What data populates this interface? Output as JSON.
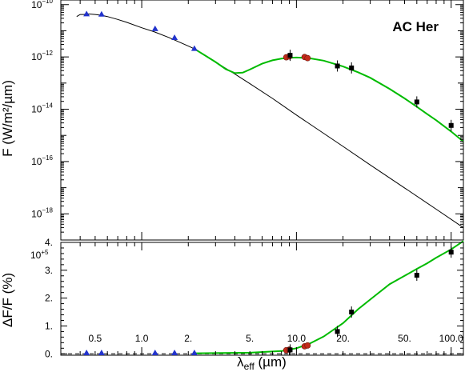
{
  "chart_data": [
    {
      "type": "scatter",
      "panel": "sed",
      "annotation": "AC Her",
      "xlabel_parts": [
        "λ",
        "eff",
        " (µm)"
      ],
      "ylabel": "F (W/m²/µm)",
      "x_scale": "log",
      "y_scale": "log",
      "xlim": [
        0.3,
        120
      ],
      "ylim": [
        1e-19,
        1.5e-10
      ],
      "x_ticks": [
        {
          "value": 0.5,
          "label": "0.5"
        },
        {
          "value": 1,
          "label": "1.0"
        },
        {
          "value": 2,
          "label": "2."
        },
        {
          "value": 5,
          "label": "5."
        },
        {
          "value": 10,
          "label": "10.0"
        },
        {
          "value": 20,
          "label": "20."
        },
        {
          "value": 50,
          "label": "50."
        },
        {
          "value": 100,
          "label": "100.0"
        }
      ],
      "y_ticks": [
        {
          "value": 1e-10,
          "mant": "10",
          "exp": "−10"
        },
        {
          "value": 1e-12,
          "mant": "10",
          "exp": "−12"
        },
        {
          "value": 1e-14,
          "mant": "10",
          "exp": "−14"
        },
        {
          "value": 1e-16,
          "mant": "10",
          "exp": "−16"
        },
        {
          "value": 1e-18,
          "mant": "10",
          "exp": "−18"
        }
      ],
      "colors": {
        "photosphere": "#000000",
        "model": "#00bb00",
        "blue_points": "#2233cc",
        "red_points": "#c42a1a",
        "black_points": "#000000"
      },
      "series": [
        {
          "kind": "photosphere_line",
          "x": [
            0.38,
            0.4,
            0.42,
            0.45,
            0.5,
            0.55,
            0.6,
            0.7,
            0.8,
            1.0,
            1.2,
            1.5,
            1.65,
            2.0,
            2.2,
            3.0,
            4.0,
            5.0,
            7.0,
            10.0,
            20.0,
            30.0,
            50.0,
            80.0,
            120.0
          ],
          "y": [
            3.5e-11,
            4.2e-11,
            4.2e-11,
            4.4e-11,
            4.2e-11,
            3.9e-11,
            3.5e-11,
            2.7e-11,
            2.1e-11,
            1.3e-11,
            9.2e-12,
            5.5e-12,
            4.3e-12,
            2.6e-12,
            2e-12,
            6.4e-13,
            2.2e-13,
            9.5e-14,
            2.6e-14,
            6e-15,
            3.8e-16,
            7.4e-17,
            9.8e-18,
            1.5e-18,
            2.95e-19
          ]
        },
        {
          "kind": "model_line",
          "x": [
            2.2,
            3.0,
            3.5,
            4.0,
            4.5,
            5.0,
            6.0,
            7.0,
            8.0,
            9.0,
            10.0,
            12.0,
            15.0,
            20.0,
            25.0,
            30.0,
            40.0,
            50.0,
            60.0,
            70.0,
            80.0,
            100.0,
            120.0
          ],
          "y": [
            2e-12,
            6.4e-13,
            3.4e-13,
            2.4e-13,
            2.5e-13,
            3.3e-13,
            5.5e-13,
            7.4e-13,
            8.6e-13,
            9.3e-13,
            9.5e-13,
            9e-13,
            7.2e-13,
            4.3e-13,
            2.6e-13,
            1.6e-13,
            6e-14,
            2.6e-14,
            1.25e-14,
            6.5e-15,
            3.8e-15,
            1.4e-15,
            5.8e-16
          ]
        },
        {
          "kind": "blue_triangles",
          "x": [
            0.44,
            0.55,
            1.22,
            1.63,
            2.19
          ],
          "y": [
            4.4e-11,
            4.3e-11,
            1.2e-11,
            5.5e-12,
            2.1e-12
          ]
        },
        {
          "kind": "red_circles",
          "x": [
            8.6,
            9.0,
            11.3,
            11.8
          ],
          "y": [
            9.7e-13,
            1.05e-12,
            9.9e-13,
            9e-13
          ]
        },
        {
          "kind": "black_squares",
          "x": [
            9.1,
            18.4,
            22.7,
            60.0,
            100.0
          ],
          "y": [
            1.15e-12,
            4.5e-13,
            3.8e-13,
            1.9e-14,
            2.4e-15
          ]
        }
      ]
    },
    {
      "type": "scatter",
      "panel": "residual",
      "ylabel": "ΔF/F (%)",
      "y_scale": "linear",
      "ylim": [
        -0.05,
        4.0
      ],
      "y_offset_label": {
        "mant": "10",
        "exp": "+5"
      },
      "y_ticks": [
        {
          "value": 0,
          "label": "0."
        },
        {
          "value": 1,
          "label": "1."
        },
        {
          "value": 2,
          "label": "2."
        },
        {
          "value": 3,
          "label": "3."
        },
        {
          "value": 4,
          "label": "4."
        }
      ],
      "series": [
        {
          "kind": "model_line",
          "x": [
            2.2,
            5.0,
            8.0,
            10.0,
            12.0,
            15.0,
            20.0,
            25.0,
            30.0,
            40.0,
            50.0,
            60.0,
            70.0,
            80.0,
            100.0,
            120.0
          ],
          "y": [
            0.02,
            0.04,
            0.1,
            0.2,
            0.35,
            0.62,
            1.1,
            1.6,
            1.95,
            2.5,
            2.8,
            3.05,
            3.25,
            3.45,
            3.75,
            4.05
          ]
        },
        {
          "kind": "blue_triangles",
          "x": [
            0.44,
            0.55,
            1.22,
            1.63,
            2.19
          ],
          "y": [
            0.03,
            0.03,
            0.03,
            0.02,
            0.02
          ]
        },
        {
          "kind": "red_circles",
          "x": [
            8.6,
            9.0,
            11.3,
            11.8
          ],
          "y": [
            0.13,
            0.15,
            0.27,
            0.3
          ]
        },
        {
          "kind": "black_squares",
          "x": [
            9.1,
            18.4,
            22.7,
            60.0,
            100.0
          ],
          "y": [
            0.14,
            0.8,
            1.5,
            2.82,
            3.65
          ]
        }
      ]
    }
  ]
}
